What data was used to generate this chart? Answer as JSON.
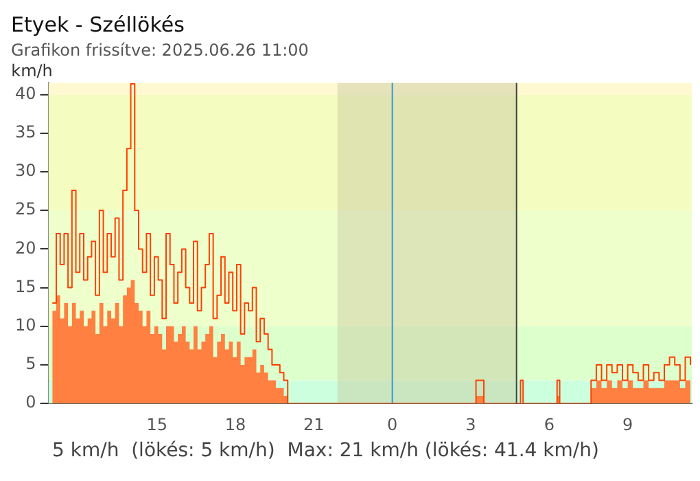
{
  "chart_data": {
    "type": "area",
    "title": "Etyek - Széllökés",
    "subtitle": "Grafikon frissítve: 2025.06.26 11:00",
    "ylabel": "km/h",
    "annotations": [
      "5 km/h  (lökés: 5 km/h)  Max: 21 km/h (lökés: 41.4 km/h)"
    ],
    "x": [
      "2025-06-25T11:00",
      "2025-06-25T11:09",
      "2025-06-25T11:18",
      "2025-06-25T11:27",
      "2025-06-25T11:36",
      "2025-06-25T11:45",
      "2025-06-25T11:54",
      "2025-06-25T12:03",
      "2025-06-25T12:12",
      "2025-06-25T12:21",
      "2025-06-25T12:30",
      "2025-06-25T12:39",
      "2025-06-25T12:48",
      "2025-06-25T12:57",
      "2025-06-25T13:06",
      "2025-06-25T13:15",
      "2025-06-25T13:24",
      "2025-06-25T13:33",
      "2025-06-25T13:42",
      "2025-06-25T13:51",
      "2025-06-25T14:00",
      "2025-06-25T14:09",
      "2025-06-25T14:18",
      "2025-06-25T14:27",
      "2025-06-25T14:36",
      "2025-06-25T14:45",
      "2025-06-25T14:54",
      "2025-06-25T15:03",
      "2025-06-25T15:12",
      "2025-06-25T15:21",
      "2025-06-25T15:30",
      "2025-06-25T15:39",
      "2025-06-25T15:48",
      "2025-06-25T15:57",
      "2025-06-25T16:06",
      "2025-06-25T16:15",
      "2025-06-25T16:24",
      "2025-06-25T16:33",
      "2025-06-25T16:42",
      "2025-06-25T16:51",
      "2025-06-25T17:00",
      "2025-06-25T17:09",
      "2025-06-25T17:18",
      "2025-06-25T17:27",
      "2025-06-25T17:36",
      "2025-06-25T17:45",
      "2025-06-25T17:54",
      "2025-06-25T18:03",
      "2025-06-25T18:12",
      "2025-06-25T18:21",
      "2025-06-25T18:30",
      "2025-06-25T18:39",
      "2025-06-25T18:48",
      "2025-06-25T18:57",
      "2025-06-25T19:06",
      "2025-06-25T19:15",
      "2025-06-25T19:24",
      "2025-06-25T19:33",
      "2025-06-25T19:42",
      "2025-06-25T19:51",
      "2025-06-25T20:00",
      "2025-06-26T03:06",
      "2025-06-26T03:12",
      "2025-06-26T03:24",
      "2025-06-26T03:30",
      "2025-06-26T04:54",
      "2025-06-26T05:00",
      "2025-06-26T06:12",
      "2025-06-26T06:18",
      "2025-06-26T06:24",
      "2025-06-26T07:30",
      "2025-06-26T07:36",
      "2025-06-26T07:48",
      "2025-06-26T08:00",
      "2025-06-26T08:12",
      "2025-06-26T08:24",
      "2025-06-26T08:36",
      "2025-06-26T08:48",
      "2025-06-26T09:00",
      "2025-06-26T09:12",
      "2025-06-26T09:24",
      "2025-06-26T09:36",
      "2025-06-26T09:48",
      "2025-06-26T10:00",
      "2025-06-26T10:12",
      "2025-06-26T10:24",
      "2025-06-26T10:36",
      "2025-06-26T10:48",
      "2025-06-26T11:00",
      "2025-06-26T11:12",
      "2025-06-26T11:24"
    ],
    "series": [
      {
        "color": "#ff8040",
        "values": [
          12,
          14,
          11,
          13,
          10,
          13,
          11,
          12,
          10,
          11,
          12,
          9,
          13,
          10,
          12,
          11,
          13,
          10,
          14,
          15,
          16,
          13,
          12,
          10,
          12,
          9,
          10,
          9,
          7,
          10,
          10,
          8,
          9,
          10,
          8,
          7,
          10,
          7,
          8,
          9,
          10,
          6,
          8,
          9,
          7,
          8,
          6,
          8,
          5,
          6,
          6,
          7,
          4,
          5,
          4,
          3,
          3,
          2,
          2,
          1,
          0,
          0,
          1,
          1,
          0,
          0,
          0,
          0,
          1,
          0,
          0,
          2,
          3,
          2,
          3,
          2,
          3,
          2,
          3,
          2,
          2,
          3,
          2,
          2,
          2,
          3,
          3,
          3,
          2,
          3,
          3
        ]
      },
      {
        "type": "line",
        "color": "#ff4000",
        "values": [
          13,
          22,
          18,
          22,
          15,
          27.6,
          17,
          22,
          16,
          19,
          21,
          14,
          25,
          17,
          22,
          19,
          24,
          16,
          27.6,
          33,
          41.4,
          25,
          20,
          17,
          22,
          14,
          19,
          16,
          11,
          22,
          18,
          13,
          17,
          20,
          15,
          13,
          21,
          12,
          15,
          18,
          22,
          11,
          14,
          19,
          13,
          17,
          12,
          18,
          9,
          13,
          12,
          15,
          8,
          11,
          9,
          7,
          5,
          5,
          4,
          3,
          0,
          0,
          3,
          3,
          0,
          3,
          0,
          0,
          3,
          0,
          0,
          3,
          5,
          3,
          5,
          4,
          5,
          3,
          5,
          4,
          3,
          5,
          3,
          4,
          3,
          5,
          6,
          5,
          3,
          6,
          5
        ]
      }
    ],
    "xlim": [
      "2025-06-25T10:51",
      "2025-06-26T11:27"
    ],
    "xticks": [
      {
        "value": "2025-06-25T15:00",
        "label": "15"
      },
      {
        "value": "2025-06-25T18:00",
        "label": "18"
      },
      {
        "value": "2025-06-25T21:00",
        "label": "21"
      },
      {
        "value": "2025-06-26T00:00",
        "label": "0"
      },
      {
        "value": "2025-06-26T03:00",
        "label": "3"
      },
      {
        "value": "2025-06-26T06:00",
        "label": "6"
      },
      {
        "value": "2025-06-26T09:00",
        "label": "9"
      }
    ],
    "ylim": [
      0,
      41.5
    ],
    "yticks": [
      0,
      5,
      10,
      15,
      20,
      25,
      30,
      35,
      40
    ],
    "bands": [
      {
        "axis": "y",
        "from": 0,
        "to": 3,
        "color": "#ccffdd"
      },
      {
        "axis": "y",
        "from": 3,
        "to": 10,
        "color": "#ddffcc"
      },
      {
        "axis": "y",
        "from": 10,
        "to": 25,
        "color": "#eeffcc"
      },
      {
        "axis": "y",
        "from": 25,
        "to": 40,
        "color": "#f4fcc0"
      },
      {
        "axis": "y",
        "from": 40,
        "to": 41.5,
        "color": "#fff8d0"
      },
      {
        "axis": "x",
        "from": "2025-06-25T21:54",
        "to": "2025-06-26T04:45",
        "color": "#c8c8a0"
      }
    ],
    "ref_lines": [
      {
        "axis": "x",
        "value": "2025-06-26T00:00",
        "color": "#3399cc"
      },
      {
        "axis": "x",
        "value": "2025-06-26T04:45",
        "color": "#444444"
      }
    ],
    "grid": false,
    "legend": false
  }
}
